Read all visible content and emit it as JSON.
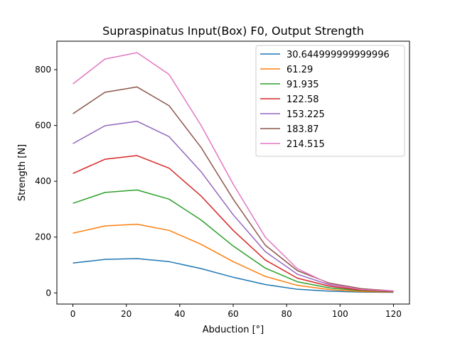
{
  "chart_data": {
    "type": "line",
    "title": "Supraspinatus Input(Box) F0, Output Strength",
    "xlabel": "Abduction [°]",
    "ylabel": "Strength [N]",
    "xlim": [
      -6,
      126
    ],
    "ylim": [
      -40,
      902
    ],
    "xticks": [
      0,
      20,
      40,
      60,
      80,
      100,
      120
    ],
    "yticks": [
      0,
      200,
      400,
      600,
      800
    ],
    "grid": false,
    "legend_position": "top-right",
    "x": [
      0,
      12,
      24,
      36,
      48,
      60,
      72,
      84,
      96,
      108,
      120
    ],
    "series": [
      {
        "name": "30.644999999999996",
        "color": "#1f77b4",
        "values": [
          107,
          120,
          123,
          112,
          87,
          56,
          30,
          13,
          6,
          3,
          2
        ]
      },
      {
        "name": "61.29",
        "color": "#ff7f0e",
        "values": [
          214,
          240,
          246,
          224,
          174,
          112,
          59,
          27,
          12,
          5,
          3
        ]
      },
      {
        "name": "91.935",
        "color": "#2ca02c",
        "values": [
          321,
          360,
          369,
          336,
          261,
          168,
          89,
          40,
          18,
          8,
          4
        ]
      },
      {
        "name": "122.58",
        "color": "#d62728",
        "values": [
          428,
          479,
          492,
          447,
          347,
          224,
          118,
          53,
          24,
          10,
          5
        ]
      },
      {
        "name": "153.225",
        "color": "#9467bd",
        "values": [
          535,
          599,
          615,
          560,
          434,
          280,
          148,
          67,
          29,
          13,
          6
        ]
      },
      {
        "name": "183.87",
        "color": "#8c564b",
        "values": [
          642,
          719,
          738,
          671,
          521,
          336,
          171,
          80,
          35,
          15,
          7
        ]
      },
      {
        "name": "214.515",
        "color": "#e377c2",
        "values": [
          749,
          838,
          861,
          783,
          600,
          390,
          200,
          87,
          32,
          12,
          7
        ]
      }
    ]
  }
}
